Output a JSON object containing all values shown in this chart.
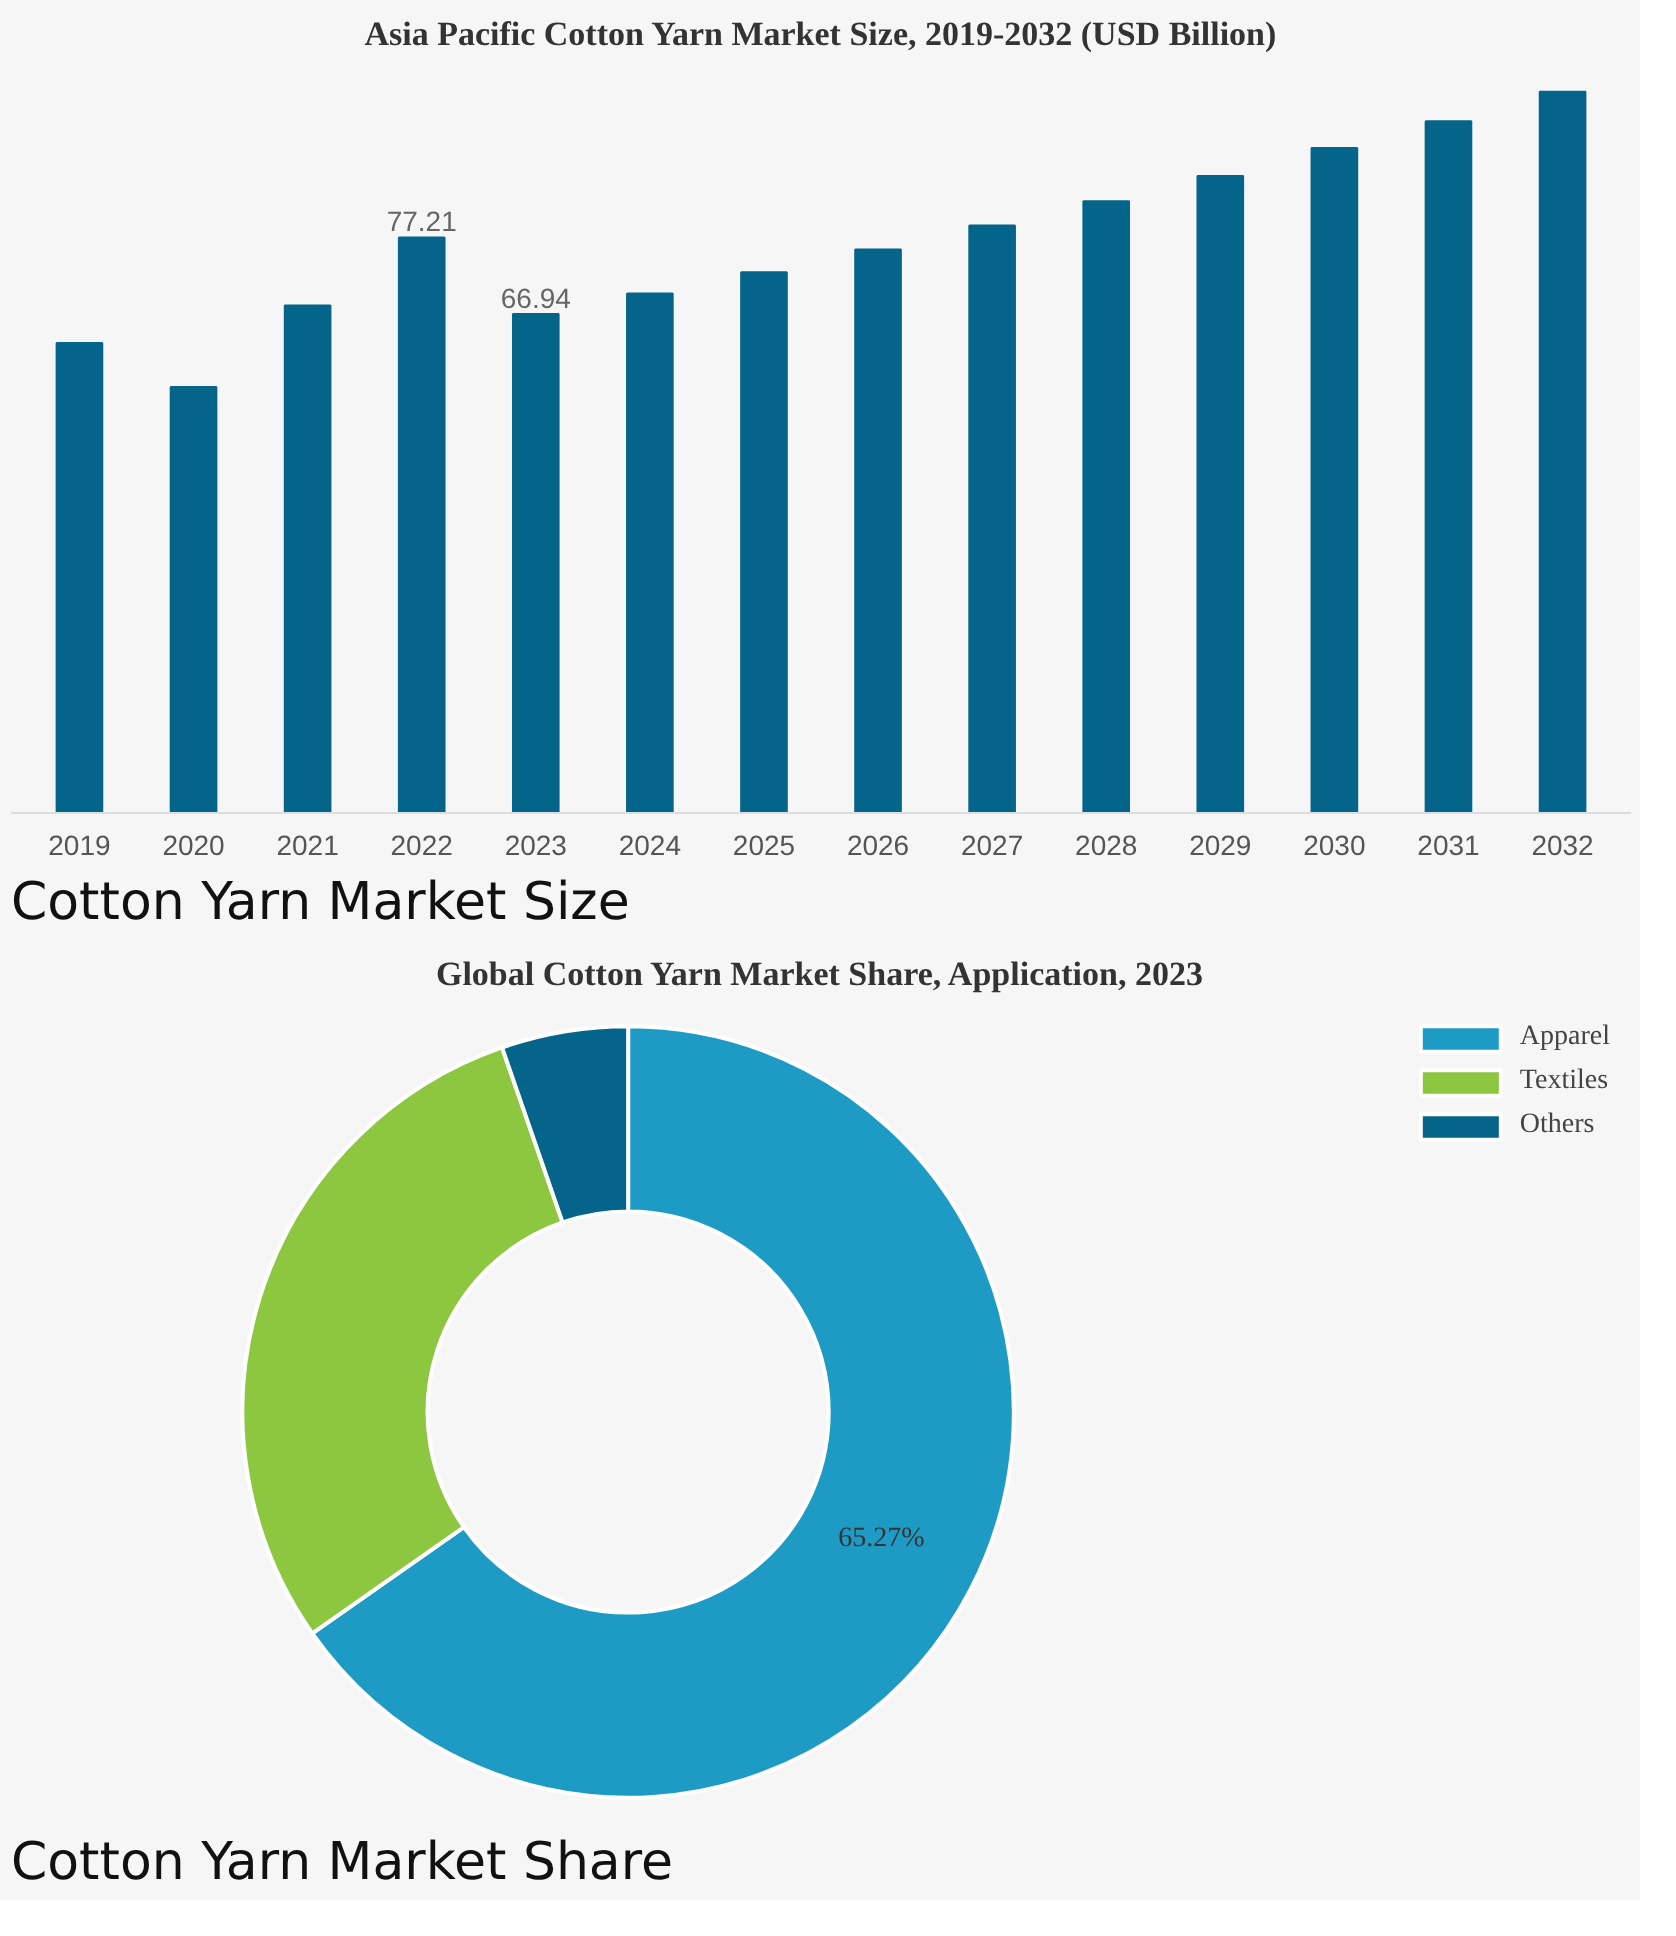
{
  "chart_data": [
    {
      "type": "bar",
      "title": "Asia Pacific Cotton Yarn Market Size, 2019-2032 (USD Billion)",
      "categories": [
        "2019",
        "2020",
        "2021",
        "2022",
        "2023",
        "2024",
        "2025",
        "2026",
        "2027",
        "2028",
        "2029",
        "2030",
        "2031",
        "2032"
      ],
      "values": [
        63.06,
        57.15,
        68.07,
        77.21,
        66.94,
        69.69,
        72.55,
        75.6,
        78.82,
        82.05,
        85.45,
        89.21,
        92.8,
        96.74
      ],
      "value_labels": [
        null,
        null,
        null,
        "77.21",
        "66.94",
        null,
        null,
        null,
        null,
        null,
        null,
        null,
        null,
        null
      ],
      "color": "#05648a",
      "grid": false,
      "legend": false,
      "annotations": [
        "Cotton Yarn Market Size"
      ]
    },
    {
      "type": "donut",
      "title": "Global Cotton Yarn Market Share, Application, 2023",
      "categories": [
        "Apparel",
        "Textiles",
        "Others"
      ],
      "values": [
        65.27,
        29.43,
        5.3
      ],
      "colors": [
        "#1e9bc4",
        "#8dc63f",
        "#05648a"
      ],
      "value_labels": [
        "65.27%",
        null,
        null
      ],
      "legend": "top right",
      "annotations": [
        "Cotton Yarn Market Share"
      ]
    }
  ]
}
